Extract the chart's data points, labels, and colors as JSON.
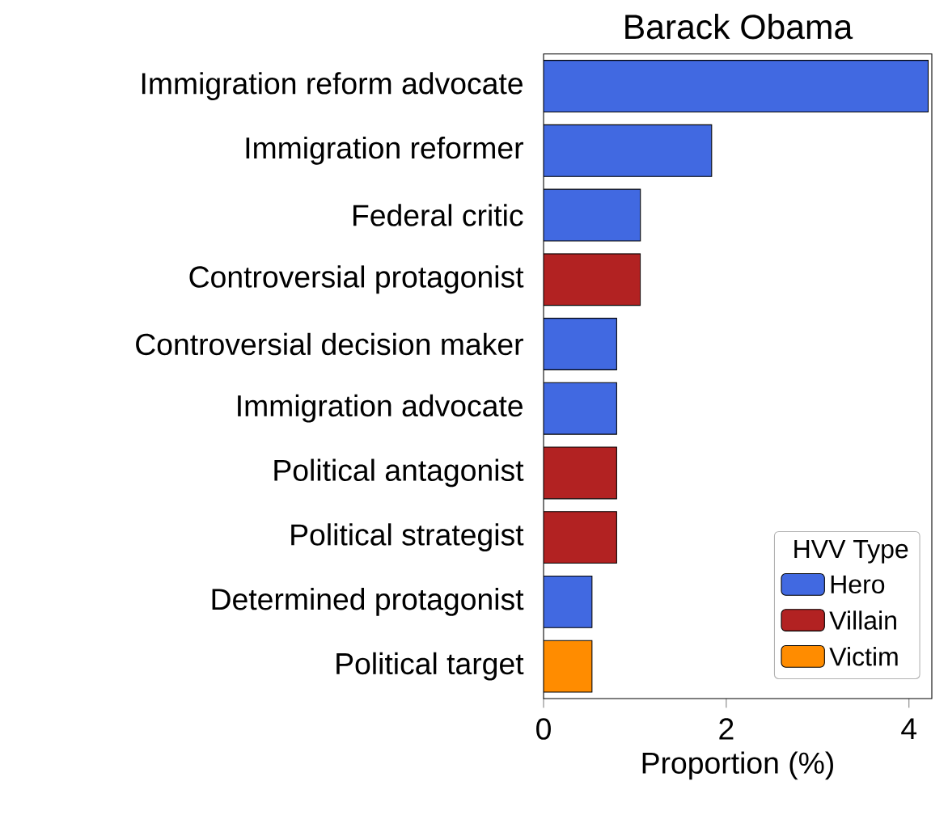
{
  "chart_data": {
    "type": "bar",
    "orientation": "horizontal",
    "title": "Barack Obama",
    "xlabel": "Proportion (%)",
    "legend_title": "HVV Type",
    "legend": "bottom right",
    "categories": [
      "Immigration reform advocate",
      "Immigration reformer",
      "Federal critic",
      "Controversial protagonist",
      "Controversial decision maker",
      "Immigration advocate",
      "Political antagonist",
      "Political strategist",
      "Determined protagonist",
      "Political target"
    ],
    "series": [
      {
        "name": "Hero",
        "color": "#4169e1",
        "values": [
          4.21,
          1.84,
          1.06,
          null,
          0.8,
          0.8,
          null,
          null,
          0.53,
          null
        ]
      },
      {
        "name": "Villain",
        "color": "#b22222",
        "values": [
          null,
          null,
          null,
          1.06,
          null,
          null,
          0.8,
          0.8,
          null,
          null
        ]
      },
      {
        "name": "Victim",
        "color": "#ff8c00",
        "values": [
          null,
          null,
          null,
          null,
          null,
          null,
          null,
          null,
          null,
          0.53
        ]
      }
    ],
    "xlim": [
      0,
      4.25
    ],
    "xticks": [
      0,
      2,
      4
    ],
    "grid": false
  }
}
